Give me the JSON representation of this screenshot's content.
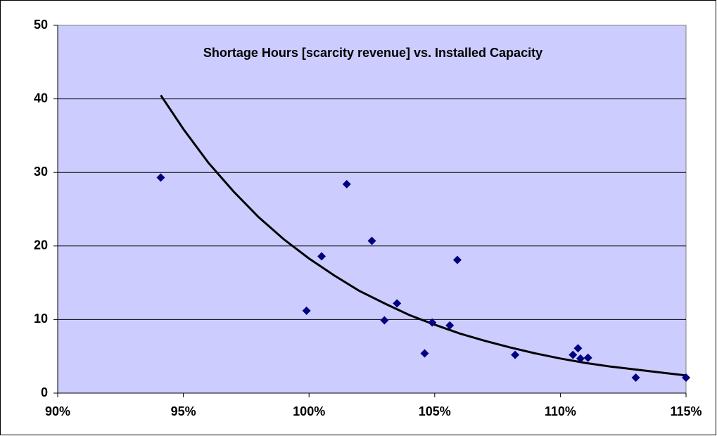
{
  "chart_data": {
    "type": "scatter",
    "title": "Shortage Hours [scarcity revenue] vs. Installed Capacity",
    "series": [
      {
        "color": "#000080",
        "x": [
          94.1,
          99.9,
          100.5,
          101.5,
          102.5,
          103.0,
          103.5,
          104.6,
          104.9,
          105.6,
          105.9,
          108.2,
          110.5,
          110.7,
          110.8,
          111.1,
          113.0,
          115.0
        ],
        "values": [
          29.3,
          11.2,
          18.6,
          28.4,
          20.7,
          9.9,
          12.2,
          5.4,
          9.6,
          9.2,
          18.1,
          5.2,
          5.2,
          6.1,
          4.7,
          4.8,
          2.1,
          2.1
        ]
      }
    ],
    "trendline": {
      "color": "#000000",
      "x": [
        94.1,
        95,
        96,
        97,
        98,
        99,
        100,
        101,
        102,
        103,
        104,
        105,
        106,
        107,
        108,
        109,
        110,
        111,
        112,
        113,
        114,
        115
      ],
      "values": [
        40.5,
        35.9,
        31.3,
        27.4,
        23.9,
        20.9,
        18.3,
        16.0,
        13.9,
        12.2,
        10.6,
        9.3,
        8.1,
        7.1,
        6.2,
        5.4,
        4.7,
        4.1,
        3.6,
        3.2,
        2.8,
        2.4
      ]
    },
    "xlim": [
      90,
      115
    ],
    "xticks": [
      {
        "value": 90,
        "label": "90%"
      },
      {
        "value": 95,
        "label": "95%"
      },
      {
        "value": 100,
        "label": "100%"
      },
      {
        "value": 105,
        "label": "105%"
      },
      {
        "value": 110,
        "label": "110%"
      },
      {
        "value": 115,
        "label": "115%"
      }
    ],
    "ylim": [
      0,
      50
    ],
    "yticks": [
      0,
      10,
      20,
      30,
      40,
      50
    ],
    "grid": true,
    "plot_background": "#ccccff"
  }
}
